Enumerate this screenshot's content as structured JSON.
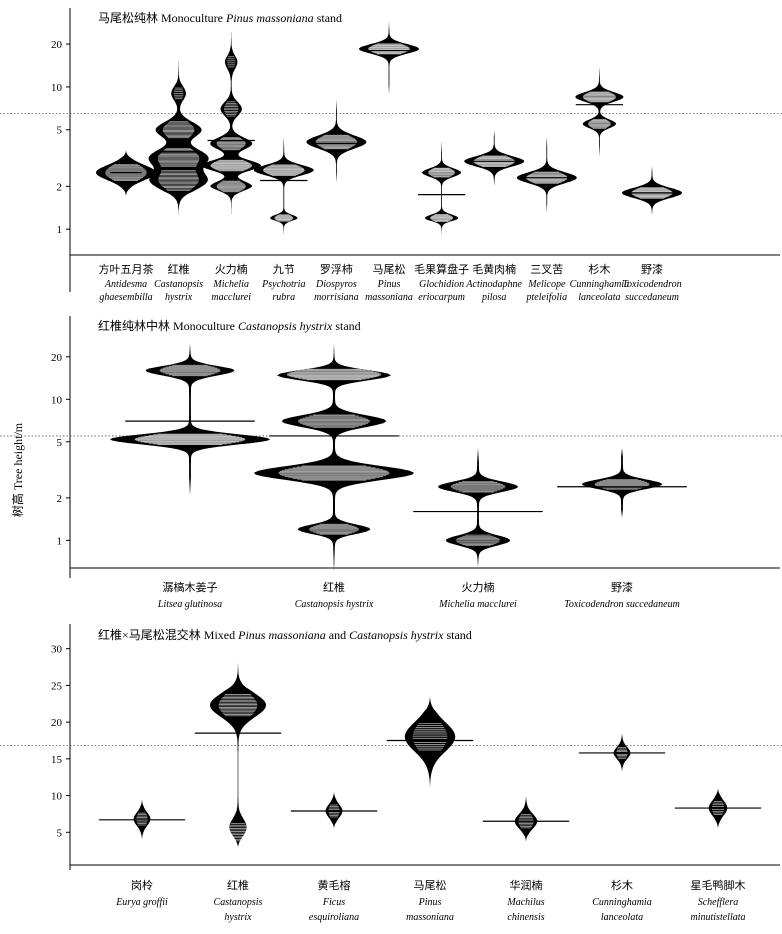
{
  "figure": {
    "y_axis_label": "树高 Tree height/m"
  },
  "chart_data": [
    {
      "type": "violin",
      "title_parts": [
        {
          "text": "马尾松纯林 Monoculture ",
          "italic": false
        },
        {
          "text": "Pinus massoniana",
          "italic": true
        },
        {
          "text": " stand",
          "italic": false
        }
      ],
      "y_scale": "log",
      "ylim": [
        0.75,
        30
      ],
      "y_ticks": [
        1,
        2,
        5,
        10,
        20
      ],
      "reference_line": 6.5,
      "categories": [
        {
          "cn": "方叶五月茶",
          "latin": [
            "Antidesma",
            "ghaesembilla"
          ],
          "y_range": [
            1.7,
            3.6
          ],
          "modes": [
            [
              2.5,
              0.45,
              1
            ]
          ],
          "line": 2.5,
          "line_len": 0.6
        },
        {
          "cn": "红椎",
          "latin": [
            "Castanopsis",
            "hystrix"
          ],
          "y_range": [
            1.2,
            16
          ],
          "modes": [
            [
              2.2,
              0.55,
              1
            ],
            [
              3.2,
              0.5,
              1
            ],
            [
              5.0,
              0.45,
              0.8
            ],
            [
              9.0,
              0.4,
              0.25
            ]
          ],
          "line": 3.5,
          "line_len": 0.9
        },
        {
          "cn": "火力楠",
          "latin": [
            "Michelia",
            "macclurei"
          ],
          "y_range": [
            1.2,
            26
          ],
          "modes": [
            [
              2.0,
              0.3,
              0.7
            ],
            [
              2.8,
              0.3,
              1
            ],
            [
              4.0,
              0.35,
              0.7
            ],
            [
              7.0,
              0.4,
              0.35
            ],
            [
              15.0,
              0.4,
              0.2
            ]
          ],
          "line": 4.2,
          "line_len": 0.9
        },
        {
          "cn": "九节",
          "latin": [
            "Psychotria",
            "rubra"
          ],
          "y_range": [
            0.9,
            4.5
          ],
          "modes": [
            [
              1.2,
              0.18,
              0.45
            ],
            [
              2.6,
              0.3,
              1
            ]
          ],
          "line": 2.2,
          "line_len": 0.9
        },
        {
          "cn": "罗浮柿",
          "latin": [
            "Diospyros",
            "morrisiana"
          ],
          "y_range": [
            2.1,
            8.2
          ],
          "modes": [
            [
              4.1,
              0.38,
              1
            ]
          ],
          "line": 4.0,
          "line_len": 0.9
        },
        {
          "cn": "马尾松",
          "latin": [
            "Pinus",
            "massoniana"
          ],
          "y_range": [
            8.8,
            29
          ],
          "modes": [
            [
              18.5,
              0.28,
              1
            ]
          ],
          "line": 18.0,
          "line_len": 0.9
        },
        {
          "cn": "毛果算盘子",
          "latin": [
            "Glochidion",
            "eriocarpum"
          ],
          "y_range": [
            0.9,
            4.2
          ],
          "modes": [
            [
              1.2,
              0.2,
              0.55
            ],
            [
              2.5,
              0.25,
              0.65
            ]
          ],
          "line": 1.75,
          "line_len": 0.9
        },
        {
          "cn": "毛黄肉楠",
          "latin": [
            "Actinodaphne",
            "pilosa"
          ],
          "y_range": [
            2.0,
            5.0
          ],
          "modes": [
            [
              3.0,
              0.3,
              1
            ]
          ],
          "line": 3.0,
          "line_len": 0.9
        },
        {
          "cn": "三叉苦",
          "latin": [
            "Melicope",
            "pteleifolia"
          ],
          "y_range": [
            1.3,
            4.5
          ],
          "modes": [
            [
              2.3,
              0.32,
              1
            ]
          ],
          "line": 2.3,
          "line_len": 0.9
        },
        {
          "cn": "杉木",
          "latin": [
            "Cunninghamia",
            "lanceolata"
          ],
          "y_range": [
            3.2,
            14
          ],
          "modes": [
            [
              5.5,
              0.25,
              0.55
            ],
            [
              8.5,
              0.28,
              0.8
            ]
          ],
          "line": 7.5,
          "line_len": 0.9
        },
        {
          "cn": "野漆",
          "latin": [
            "Toxicodendron",
            "succedaneum"
          ],
          "y_range": [
            1.25,
            2.8
          ],
          "modes": [
            [
              1.8,
              0.3,
              1
            ]
          ],
          "line": 1.8,
          "line_len": 0.9
        }
      ]
    },
    {
      "type": "violin",
      "title_parts": [
        {
          "text": "红椎纯林中林 Monoculture ",
          "italic": false
        },
        {
          "text": "Castanopsis hystrix",
          "italic": true
        },
        {
          "text": " stand",
          "italic": false
        }
      ],
      "y_scale": "log",
      "ylim": [
        0.75,
        30
      ],
      "y_ticks": [
        1,
        2,
        5,
        10,
        20
      ],
      "reference_line": 5.5,
      "categories": [
        {
          "cn": "潺槁木姜子",
          "latin": [
            "Litsea glutinosa"
          ],
          "y_range": [
            2.1,
            25
          ],
          "modes": [
            [
              5.2,
              0.3,
              1
            ],
            [
              16.0,
              0.3,
              0.55
            ]
          ],
          "line": 7.0,
          "line_len": 0.9
        },
        {
          "cn": "红椎",
          "latin": [
            "Castanopsis hystrix"
          ],
          "y_range": [
            0.6,
            25
          ],
          "modes": [
            [
              1.2,
              0.28,
              0.45
            ],
            [
              3.0,
              0.4,
              1
            ],
            [
              7.0,
              0.35,
              0.65
            ],
            [
              15.0,
              0.3,
              0.85
            ]
          ],
          "line": 5.5,
          "line_len": 0.9
        },
        {
          "cn": "火力楠",
          "latin": [
            "Michelia macclurei"
          ],
          "y_range": [
            0.65,
            4.5
          ],
          "modes": [
            [
              1.0,
              0.3,
              0.4
            ],
            [
              2.4,
              0.3,
              0.5
            ]
          ],
          "line": 1.6,
          "line_len": 0.9
        },
        {
          "cn": "野漆",
          "latin": [
            "Toxicodendron succedaneum"
          ],
          "y_range": [
            1.45,
            4.5
          ],
          "modes": [
            [
              2.5,
              0.28,
              0.5
            ]
          ],
          "line": 2.4,
          "line_len": 0.9
        }
      ]
    },
    {
      "type": "violin",
      "title_parts": [
        {
          "text": "红椎×马尾松混交林 Mixed ",
          "italic": false
        },
        {
          "text": "Pinus massoniana",
          "italic": true
        },
        {
          "text": " and ",
          "italic": false
        },
        {
          "text": "Castanopsis hystrix",
          "italic": true
        },
        {
          "text": " stand",
          "italic": false
        }
      ],
      "y_scale": "linear",
      "ylim": [
        0,
        30.5
      ],
      "y_ticks": [
        5,
        10,
        15,
        20,
        25,
        30
      ],
      "reference_line": 16.8,
      "categories": [
        {
          "cn": "岗柃",
          "latin": [
            "Eurya groffii"
          ],
          "y_range": [
            4.0,
            9.5
          ],
          "modes": [
            [
              6.8,
              0.9,
              0.3
            ]
          ],
          "line": 6.7,
          "line_len": 0.9
        },
        {
          "cn": "红椎",
          "latin": [
            "Castanopsis",
            "hystrix"
          ],
          "y_range": [
            3.0,
            28.5
          ],
          "modes": [
            [
              5.0,
              1.3,
              0.55
            ],
            [
              22.3,
              1.6,
              1
            ]
          ],
          "line": 18.5,
          "line_len": 0.9
        },
        {
          "cn": "黄毛榕",
          "latin": [
            "Ficus",
            "esquiroliana"
          ],
          "y_range": [
            5.5,
            10.5
          ],
          "modes": [
            [
              7.9,
              0.9,
              0.3
            ]
          ],
          "line": 7.9,
          "line_len": 0.9
        },
        {
          "cn": "马尾松",
          "latin": [
            "Pinus",
            "massoniana"
          ],
          "y_range": [
            11.0,
            23.5
          ],
          "modes": [
            [
              18.0,
              2.0,
              0.9
            ]
          ],
          "line": 17.5,
          "line_len": 0.9
        },
        {
          "cn": "华润楠",
          "latin": [
            "Machilus",
            "chinensis"
          ],
          "y_range": [
            3.7,
            10.0
          ],
          "modes": [
            [
              6.5,
              1.0,
              0.4
            ]
          ],
          "line": 6.5,
          "line_len": 0.9
        },
        {
          "cn": "杉木",
          "latin": [
            "Cunninghamia",
            "lanceolata"
          ],
          "y_range": [
            13.2,
            18.5
          ],
          "modes": [
            [
              15.8,
              0.8,
              0.3
            ]
          ],
          "line": 15.8,
          "line_len": 0.9
        },
        {
          "cn": "星毛鸭脚木",
          "latin": [
            "Schefflera",
            "minutistellata"
          ],
          "y_range": [
            5.5,
            11.0
          ],
          "modes": [
            [
              8.3,
              1.0,
              0.33
            ]
          ],
          "line": 8.3,
          "line_len": 0.9
        }
      ]
    }
  ]
}
